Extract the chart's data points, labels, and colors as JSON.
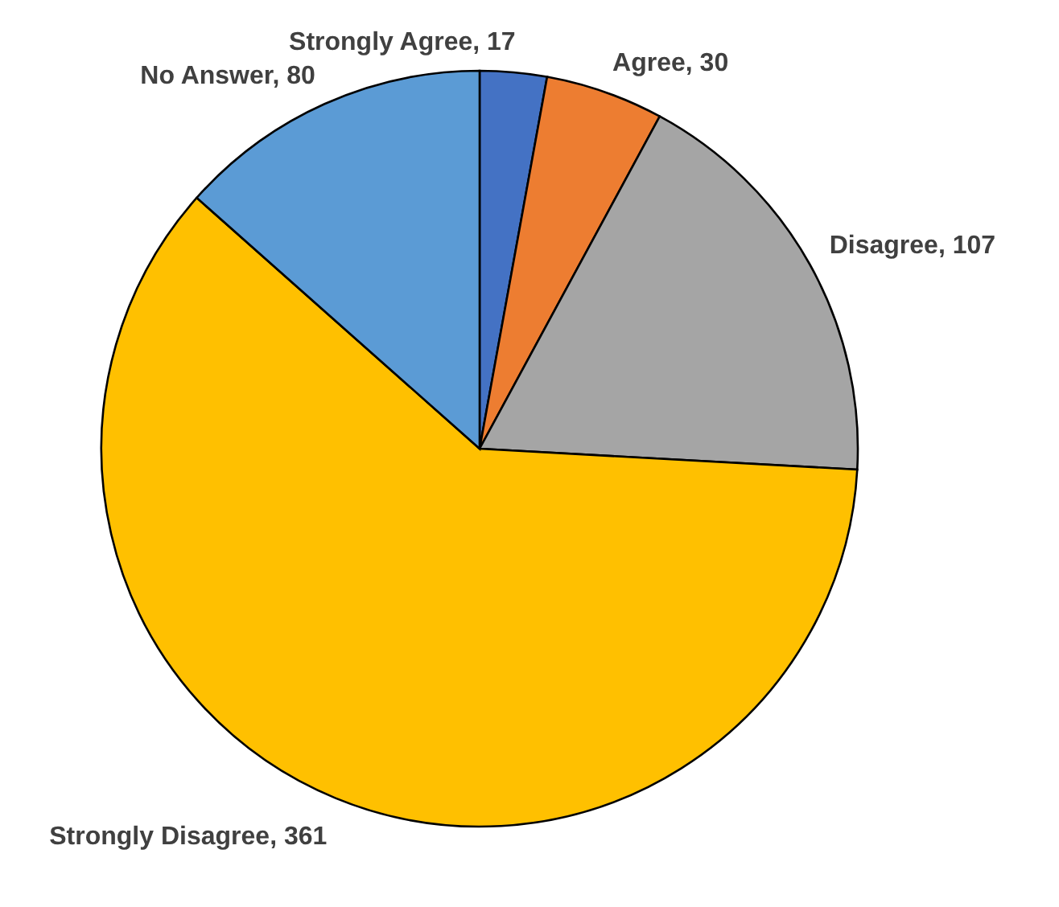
{
  "chart_data": {
    "type": "pie",
    "categories": [
      "Strongly Agree",
      "Agree",
      "Disagree",
      "Strongly Disagree",
      "No Answer"
    ],
    "values": [
      17,
      30,
      107,
      361,
      80
    ],
    "value_labels": [
      ", 17",
      ", 30",
      ", 107",
      ", 361",
      ", 80"
    ],
    "colors": [
      "#4472c4",
      "#ed7d31",
      "#a5a5a5",
      "#ffc000",
      "#5b9bd5"
    ],
    "legend": false
  }
}
